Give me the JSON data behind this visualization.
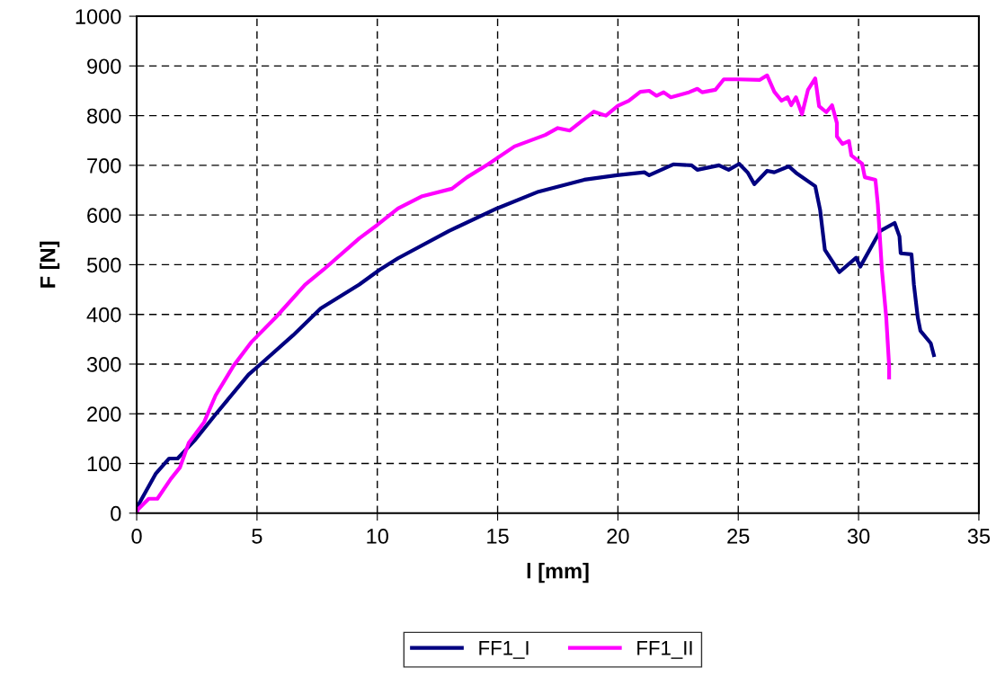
{
  "chart_data": {
    "type": "line",
    "xlabel": "l [mm]",
    "ylabel": "F [N]",
    "xlim": [
      0,
      35
    ],
    "xticks": [
      0,
      5,
      10,
      15,
      20,
      25,
      30,
      35
    ],
    "ylim": [
      0,
      1000
    ],
    "yticks": [
      0,
      100,
      200,
      300,
      400,
      500,
      600,
      700,
      800,
      900,
      1000
    ],
    "grid": true,
    "legend": "bottom",
    "marker": "none",
    "line_style": "solid",
    "series": [
      {
        "name": "FF1_I",
        "color": "#000080",
        "x": [
          0,
          0.04,
          0.8,
          1.35,
          1.7,
          2.4,
          3.3,
          4.65,
          5.15,
          6.5,
          7.65,
          9.25,
          10.1,
          10.86,
          12.98,
          14.96,
          16.7,
          18.6,
          19.96,
          21.1,
          21.3,
          22.3,
          23.06,
          23.3,
          24.2,
          24.6,
          25.04,
          25.4,
          25.67,
          26.2,
          26.5,
          27.1,
          27.4,
          28.2,
          28.4,
          28.6,
          29.2,
          29.9,
          30.07,
          30.9,
          31.5,
          31.7,
          31.75,
          32.2,
          32.3,
          32.46,
          32.57,
          33.0,
          33.13
        ],
        "values": [
          0,
          14,
          80,
          110,
          110,
          146,
          200,
          279,
          300,
          358,
          412,
          460,
          490,
          513,
          568,
          613,
          647,
          671,
          680,
          686,
          680,
          702,
          700,
          691,
          700,
          691,
          703,
          685,
          662,
          689,
          686,
          698,
          685,
          658,
          611,
          530,
          485,
          514,
          496,
          568,
          584,
          557,
          523,
          521,
          460,
          394,
          367,
          342,
          318
        ]
      },
      {
        "name": "FF1_II",
        "color": "#ff00ff",
        "x": [
          0,
          0.04,
          0.5,
          0.86,
          1.42,
          1.8,
          2.16,
          2.8,
          3.28,
          4.03,
          4.78,
          5.78,
          7.0,
          7.76,
          9.25,
          10.0,
          10.86,
          11.87,
          13.1,
          13.73,
          14.6,
          15.7,
          16.98,
          17.5,
          18.0,
          19.0,
          19.5,
          20.0,
          20.45,
          20.93,
          21.3,
          21.6,
          21.9,
          22.2,
          22.95,
          23.3,
          23.5,
          24.05,
          24.4,
          25.0,
          25.9,
          26.2,
          26.5,
          26.8,
          27.05,
          27.2,
          27.4,
          27.65,
          27.9,
          28.2,
          28.36,
          28.66,
          28.9,
          29.1,
          29.1,
          29.33,
          29.6,
          29.7,
          30.15,
          30.26,
          30.7,
          30.8,
          30.97,
          31.15,
          31.27,
          31.27
        ],
        "values": [
          0,
          7,
          29,
          29,
          69,
          92,
          141,
          183,
          237,
          297,
          345,
          394,
          460,
          490,
          553,
          580,
          613,
          638,
          653,
          676,
          702,
          738,
          761,
          775,
          770,
          808,
          800,
          820,
          830,
          848,
          850,
          840,
          847,
          837,
          847,
          854,
          847,
          852,
          873,
          873,
          872,
          881,
          848,
          830,
          837,
          821,
          837,
          803,
          852,
          875,
          819,
          807,
          821,
          785,
          758,
          743,
          749,
          720,
          703,
          676,
          671,
          622,
          490,
          394,
          297,
          273
        ]
      }
    ]
  }
}
